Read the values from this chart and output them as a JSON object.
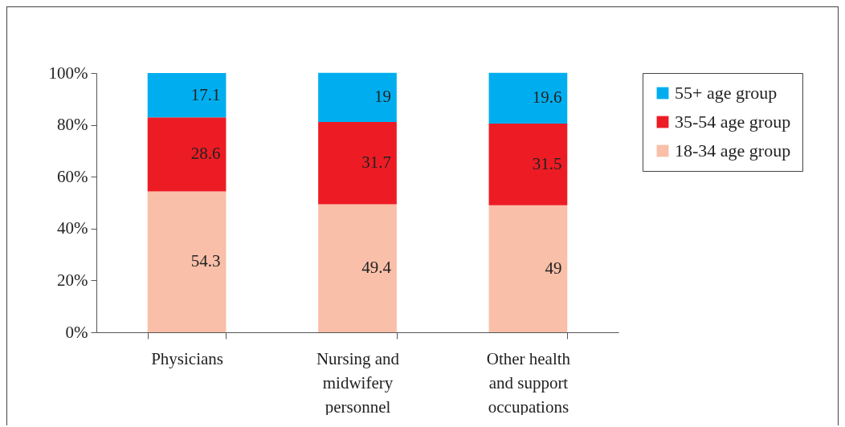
{
  "chart_data": {
    "type": "bar",
    "stacked": true,
    "categories": [
      "Physicians",
      "Nursing and midwifery personnel",
      "Other health and support occupations"
    ],
    "series": [
      {
        "name": "18-34 age group",
        "color": "#f9bfa8",
        "values": [
          54.3,
          49.4,
          49
        ]
      },
      {
        "name": "35-54 age group",
        "color": "#ed1c24",
        "values": [
          28.6,
          31.7,
          31.5
        ]
      },
      {
        "name": "55+ age group",
        "color": "#00aeef",
        "values": [
          17.1,
          19,
          19.6
        ]
      }
    ],
    "ylim": [
      0,
      100
    ],
    "yticks": [
      {
        "value": 0,
        "label": "0%"
      },
      {
        "value": 20,
        "label": "20%"
      },
      {
        "value": 40,
        "label": "40%"
      },
      {
        "value": 60,
        "label": "60%"
      },
      {
        "value": 80,
        "label": "80%"
      },
      {
        "value": 100,
        "label": "100%"
      }
    ],
    "data_labels": true,
    "legend": "right",
    "grid": false
  }
}
